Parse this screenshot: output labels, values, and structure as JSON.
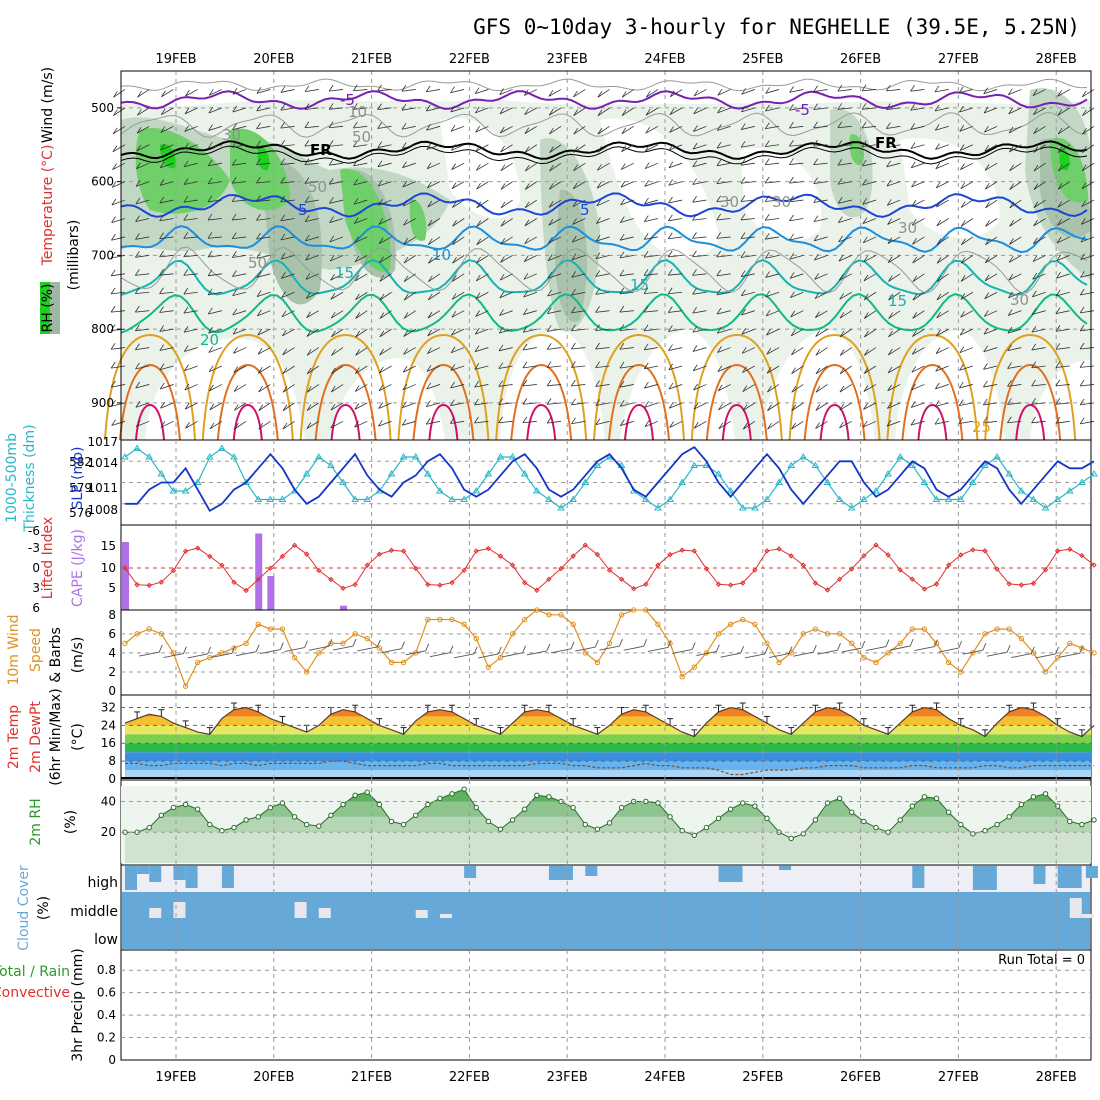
{
  "title": "GFS 0~10day 3-hourly for NEGHELLE (39.5E, 5.25N)",
  "colors": {
    "grid": "#9a9a9a",
    "rh_light": "#e4efe4",
    "rh_mid": "#c2d7c4",
    "rh_dark": "#9fb8a3",
    "rh_green": "#6fcf6a",
    "rh_bright": "#1fd01f",
    "t_purple": "#7a1fb3",
    "t_black": "#000000",
    "t_blue": "#1c47d6",
    "t_lightblue": "#1a8fe0",
    "t_teal": "#17b3b3",
    "t_green": "#10b98a",
    "t_orange": "#e0a020",
    "t_darkorange": "#e07020",
    "t_magenta": "#d0106a",
    "slp": "#1435c8",
    "thickness": "#2ab8c8",
    "lifted": "#e03030",
    "cape": "#b070e8",
    "wind": "#e09020",
    "barb": "#555555",
    "rh2m_fill": "#6abb6a",
    "cloud": "#66a8d8",
    "cloud_bg": "#eeeef6"
  },
  "dates": [
    "19FEB",
    "20FEB",
    "21FEB",
    "22FEB",
    "23FEB",
    "24FEB",
    "25FEB",
    "26FEB",
    "27FEB",
    "28FEB"
  ],
  "panels": {
    "upper": {
      "ylabels": [
        "Wind (m/s)",
        "Temperature (°C)",
        "(millibars)"
      ],
      "legend_label": "RH (%)",
      "yticks": [
        "500",
        "600",
        "700",
        "800",
        "900"
      ],
      "contour_labels": [
        "-5",
        "-5",
        "FR",
        "FR",
        "5",
        "5",
        "10",
        "15",
        "15",
        "15",
        "20",
        "25",
        "30",
        "30",
        "30",
        "50",
        "50",
        "50",
        "10",
        "30",
        "30"
      ]
    },
    "slp": {
      "ylabels": [
        "1000-500mb",
        "Thickness (dm)",
        "SLP (mb)"
      ],
      "left_ticks": [
        "582",
        "579",
        "576"
      ],
      "right_ticks": [
        "1017",
        "1014",
        "1011",
        "1008"
      ]
    },
    "li": {
      "ylabels": [
        "Lifted Index",
        "CAPE (J/kg)"
      ],
      "left_ticks": [
        "-6",
        "-3",
        "0",
        "3",
        "6"
      ],
      "right_ticks": [
        "15",
        "10",
        "5"
      ]
    },
    "wind": {
      "ylabels": [
        "10m Wind",
        "Speed",
        "& Barbs",
        "(m/s)"
      ],
      "yticks": [
        "8",
        "6",
        "4",
        "2",
        "0"
      ]
    },
    "temp": {
      "ylabels": [
        "2m Temp",
        "2m DewPt",
        "(6hr Min/Max)",
        "(°C)"
      ],
      "yticks": [
        "32",
        "24",
        "16",
        "8",
        "0"
      ]
    },
    "rh": {
      "ylabels": [
        "2m RH",
        "(%)"
      ],
      "yticks": [
        "40",
        "20"
      ]
    },
    "cloud": {
      "ylabels": [
        "Cloud Cover",
        "(%)"
      ],
      "layers": [
        "high",
        "middle",
        "low"
      ]
    },
    "precip": {
      "ylabels": [
        "Total / Rain",
        "Convective",
        "3hr Precip (mm)"
      ],
      "yticks": [
        "0.8",
        "0.6",
        "0.4",
        "0.2",
        "0"
      ],
      "run_total": "Run Total = 0"
    }
  },
  "chart_data": [
    {
      "type": "line",
      "title": "SLP (mb)",
      "ylim": [
        1005,
        1017
      ],
      "x": [
        0,
        3,
        6,
        9,
        12,
        15,
        18,
        21,
        24,
        27,
        30,
        33,
        36,
        39,
        42,
        45,
        48,
        51,
        54,
        57,
        60,
        63,
        66,
        69,
        72,
        75,
        78,
        81,
        84,
        87,
        90,
        93,
        96,
        99,
        102,
        105,
        108,
        111,
        114,
        117,
        120,
        123,
        126,
        129,
        132,
        135,
        138,
        141,
        144,
        147,
        150,
        153,
        156,
        159,
        162,
        165,
        168,
        171,
        174,
        177,
        180,
        183,
        186,
        189,
        192,
        195,
        198,
        201,
        204,
        207,
        210,
        213,
        216,
        219,
        222,
        225,
        228,
        231,
        234,
        237,
        240
      ],
      "series": [
        {
          "name": "SLP",
          "values": [
            1008,
            1008,
            1010,
            1011,
            1011,
            1013,
            1010,
            1007,
            1008,
            1010,
            1011,
            1013,
            1015,
            1013,
            1010,
            1008,
            1009,
            1011,
            1013,
            1015,
            1012,
            1010,
            1009,
            1011,
            1012,
            1014,
            1015,
            1013,
            1010,
            1009,
            1010,
            1012,
            1014,
            1015,
            1013,
            1010,
            1009,
            1010,
            1012,
            1014,
            1015,
            1013,
            1010,
            1009,
            1011,
            1013,
            1015,
            1016,
            1014,
            1011,
            1009,
            1011,
            1013,
            1015,
            1013,
            1010,
            1008,
            1010,
            1012,
            1014,
            1014,
            1011,
            1009,
            1010,
            1012,
            1014,
            1013,
            1010,
            1009,
            1010,
            1012,
            1014,
            1013,
            1010,
            1008,
            1010,
            1012,
            1014,
            1013,
            1013,
            1014
          ]
        },
        {
          "name": "Thickness",
          "values": [
            582,
            583,
            582,
            580,
            578,
            578,
            579,
            582,
            583,
            582,
            579,
            577,
            577,
            577,
            578,
            580,
            582,
            581,
            579,
            577,
            577,
            578,
            580,
            582,
            582,
            580,
            578,
            577,
            577,
            578,
            580,
            582,
            582,
            580,
            578,
            577,
            576,
            577,
            579,
            581,
            582,
            581,
            578,
            577,
            576,
            577,
            579,
            581,
            581,
            580,
            578,
            576,
            576,
            577,
            579,
            581,
            582,
            581,
            579,
            577,
            576,
            577,
            578,
            580,
            582,
            581,
            579,
            577,
            577,
            577,
            579,
            581,
            582,
            580,
            578,
            577,
            576,
            577,
            578,
            579,
            580
          ]
        }
      ]
    },
    {
      "type": "bar",
      "title": "CAPE (J/kg)",
      "x": [
        0,
        33,
        36,
        54
      ],
      "values": [
        16,
        18,
        8,
        1
      ]
    },
    {
      "type": "line",
      "title": "10m Wind Speed (m/s)",
      "ylim": [
        0,
        9
      ],
      "x": [
        0,
        3,
        6,
        9,
        12,
        15,
        18,
        21,
        24,
        27,
        30,
        33,
        36,
        39,
        42,
        45,
        48,
        51,
        54,
        57,
        60,
        63,
        66,
        69,
        72,
        75,
        78,
        81,
        84,
        87,
        90,
        93,
        96,
        99,
        102,
        105,
        108,
        111,
        114,
        117,
        120,
        123,
        126,
        129,
        132,
        135,
        138,
        141,
        144,
        147,
        150,
        153,
        156,
        159,
        162,
        165,
        168,
        171,
        174,
        177,
        180,
        183,
        186,
        189,
        192,
        195,
        198,
        201,
        204,
        207,
        210,
        213,
        216,
        219,
        222,
        225,
        228,
        231,
        234,
        237,
        240
      ],
      "values": [
        5,
        6,
        6.5,
        6,
        4,
        0.5,
        3,
        3.5,
        4,
        4.5,
        5,
        7,
        6.5,
        6.5,
        3.5,
        2,
        4,
        5,
        5,
        6,
        5.5,
        4.5,
        3,
        3,
        4,
        7.5,
        7.5,
        7.5,
        7,
        5.5,
        2.5,
        3.5,
        6,
        7.5,
        8.5,
        8,
        8,
        7,
        4,
        3,
        5,
        8,
        8.5,
        8.5,
        7,
        5,
        1.5,
        2.5,
        4,
        6,
        7,
        7.5,
        7,
        5,
        3,
        4,
        6,
        6.5,
        6,
        6,
        5,
        3.5,
        3,
        4,
        5,
        6.5,
        6.5,
        5,
        3,
        2,
        4,
        6,
        6.5,
        6.5,
        5.5,
        4,
        2,
        3.5,
        5,
        4.5,
        4
      ]
    },
    {
      "type": "area",
      "title": "2m Temp (°C)",
      "ylim": [
        0,
        36
      ],
      "x": [
        0,
        3,
        6,
        9,
        12,
        15,
        18,
        21,
        24,
        27,
        30,
        33,
        36,
        39,
        42,
        45,
        48,
        51,
        54,
        57,
        60,
        63,
        66,
        69,
        72,
        75,
        78,
        81,
        84,
        87,
        90,
        93,
        96,
        99,
        102,
        105,
        108,
        111,
        114,
        117,
        120,
        123,
        126,
        129,
        132,
        135,
        138,
        141,
        144,
        147,
        150,
        153,
        156,
        159,
        162,
        165,
        168,
        171,
        174,
        177,
        180,
        183,
        186,
        189,
        192,
        195,
        198,
        201,
        204,
        207,
        210,
        213,
        216,
        219,
        222,
        225,
        228,
        231,
        234,
        237,
        240
      ],
      "series": [
        {
          "name": "Temp",
          "values": [
            25,
            27,
            29,
            28,
            25,
            23,
            21,
            20,
            27,
            31,
            32,
            30,
            27,
            25,
            23,
            21,
            24,
            29,
            31,
            30,
            27,
            24,
            22,
            20,
            26,
            30,
            31,
            30,
            27,
            24,
            22,
            20,
            25,
            30,
            31,
            30,
            27,
            24,
            22,
            20,
            24,
            29,
            31,
            30,
            27,
            24,
            21,
            19,
            25,
            30,
            32,
            31,
            28,
            25,
            22,
            20,
            25,
            30,
            32,
            31,
            28,
            24,
            22,
            20,
            25,
            30,
            32,
            31,
            27,
            24,
            22,
            19,
            25,
            30,
            32,
            31,
            28,
            24,
            21,
            19,
            24
          ]
        },
        {
          "name": "DewPt",
          "values": [
            7,
            7,
            6,
            6,
            7,
            7,
            7,
            7,
            6,
            7,
            7,
            6,
            7,
            7,
            7,
            7,
            7,
            8,
            8,
            7,
            6,
            6,
            6,
            6,
            6,
            7,
            7,
            6,
            6,
            6,
            6,
            6,
            6,
            6,
            7,
            7,
            7,
            6,
            6,
            5,
            5,
            5,
            6,
            7,
            6,
            6,
            5,
            5,
            5,
            4,
            2,
            2,
            3,
            4,
            4,
            4,
            5,
            5,
            6,
            6,
            6,
            5,
            5,
            5,
            5,
            6,
            6,
            5,
            5,
            5,
            5,
            6,
            6,
            5,
            5,
            6,
            6,
            6,
            6,
            6,
            6
          ]
        }
      ]
    },
    {
      "type": "area",
      "title": "2m RH (%)",
      "ylim": [
        0,
        50
      ],
      "x": [
        0,
        3,
        6,
        9,
        12,
        15,
        18,
        21,
        24,
        27,
        30,
        33,
        36,
        39,
        42,
        45,
        48,
        51,
        54,
        57,
        60,
        63,
        66,
        69,
        72,
        75,
        78,
        81,
        84,
        87,
        90,
        93,
        96,
        99,
        102,
        105,
        108,
        111,
        114,
        117,
        120,
        123,
        126,
        129,
        132,
        135,
        138,
        141,
        144,
        147,
        150,
        153,
        156,
        159,
        162,
        165,
        168,
        171,
        174,
        177,
        180,
        183,
        186,
        189,
        192,
        195,
        198,
        201,
        204,
        207,
        210,
        213,
        216,
        219,
        222,
        225,
        228,
        231,
        234,
        237,
        240
      ],
      "values": [
        20,
        20,
        23,
        31,
        36,
        38,
        35,
        25,
        21,
        23,
        28,
        30,
        36,
        39,
        30,
        25,
        24,
        31,
        38,
        44,
        46,
        38,
        27,
        25,
        31,
        38,
        42,
        45,
        48,
        36,
        27,
        22,
        28,
        35,
        44,
        43,
        40,
        36,
        25,
        22,
        26,
        36,
        40,
        40,
        39,
        30,
        21,
        18,
        23,
        29,
        35,
        39,
        37,
        29,
        20,
        16,
        19,
        28,
        39,
        42,
        33,
        27,
        23,
        20,
        28,
        37,
        43,
        42,
        33,
        25,
        19,
        21,
        25,
        30,
        38,
        43,
        45,
        37,
        27,
        25,
        28
      ]
    }
  ]
}
